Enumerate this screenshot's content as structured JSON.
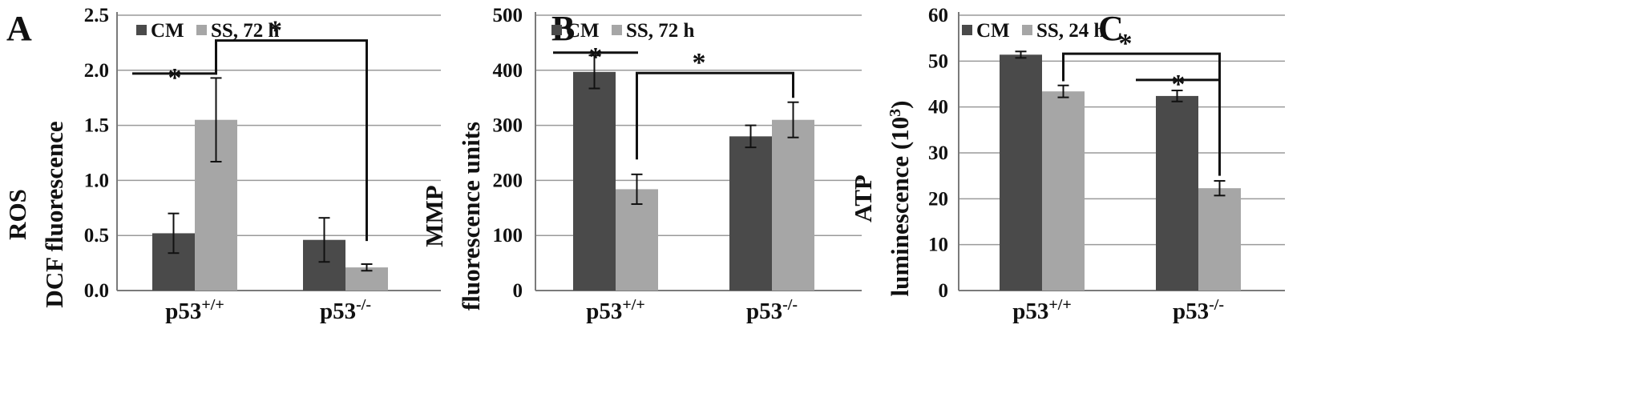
{
  "chart_data": [
    {
      "type": "bar",
      "panel_label": "A",
      "ylabel_lines": [
        "ROS",
        "DCF fluorescence"
      ],
      "ylim": [
        0,
        2.5
      ],
      "yticks": [
        "0.0",
        "0.5",
        "1.0",
        "1.5",
        "2.0",
        "2.5"
      ],
      "grid": "horizontal",
      "legend_position": "top-left",
      "categories": [
        {
          "base": "p53",
          "sup": "+/+"
        },
        {
          "base": "p53",
          "sup": "-/-"
        }
      ],
      "series": [
        {
          "name": "CM",
          "color": "#4a4a4a",
          "values": [
            0.52,
            0.46
          ],
          "errors": [
            0.18,
            0.2
          ]
        },
        {
          "name": "SS, 72 h",
          "color": "#a6a6a6",
          "values": [
            1.55,
            0.21
          ],
          "errors": [
            0.38,
            0.03
          ]
        }
      ],
      "significance": [
        {
          "type": "line",
          "label": "*",
          "cat": 0,
          "y": 1.97
        },
        {
          "type": "bracket",
          "label": "*",
          "from": {
            "cat": 0,
            "series": 1
          },
          "to": {
            "cat": 1,
            "series": 1
          },
          "y": 2.27,
          "start_y": 1.96,
          "end_y": 0.45
        }
      ]
    },
    {
      "type": "bar",
      "panel_label": "B",
      "ylabel_lines": [
        "MMP",
        "fluorescence units"
      ],
      "ylim": [
        0,
        500
      ],
      "yticks": [
        "0",
        "100",
        "200",
        "300",
        "400",
        "500"
      ],
      "grid": "horizontal",
      "legend_position": "top-left",
      "categories": [
        {
          "base": "p53",
          "sup": "+/+"
        },
        {
          "base": "p53",
          "sup": "-/-"
        }
      ],
      "series": [
        {
          "name": "CM",
          "color": "#4a4a4a",
          "values": [
            397,
            280
          ],
          "errors": [
            30,
            20
          ]
        },
        {
          "name": "SS, 72 h",
          "color": "#a6a6a6",
          "values": [
            184,
            310
          ],
          "errors": [
            27,
            32
          ]
        }
      ],
      "significance": [
        {
          "type": "line",
          "label": "*",
          "cat": 0,
          "y": 432
        },
        {
          "type": "bracket",
          "label": "*",
          "from": {
            "cat": 0,
            "series": 1
          },
          "to": {
            "cat": 1,
            "series": 1
          },
          "y": 395,
          "start_y": 238,
          "end_y": 350
        }
      ]
    },
    {
      "type": "bar",
      "panel_label": "C",
      "ylabel_lines": [
        "ATP",
        "luminescence (10",
        "3",
        ")"
      ],
      "ylim": [
        0,
        60
      ],
      "yticks": [
        "0",
        "10",
        "20",
        "30",
        "40",
        "50",
        "60"
      ],
      "grid": "horizontal",
      "legend_position": "top-left",
      "categories": [
        {
          "base": "p53",
          "sup": "+/+"
        },
        {
          "base": "p53",
          "sup": "-/-"
        }
      ],
      "series": [
        {
          "name": "CM",
          "color": "#4a4a4a",
          "values": [
            51.4,
            42.4
          ],
          "errors": [
            0.7,
            1.2
          ]
        },
        {
          "name": "SS, 24 h",
          "color": "#a6a6a6",
          "values": [
            43.4,
            22.3
          ],
          "errors": [
            1.3,
            1.6
          ]
        }
      ],
      "significance": [
        {
          "type": "line",
          "label": "*",
          "cat": 1,
          "y": 45.9
        },
        {
          "type": "bracket",
          "label": "*",
          "from": {
            "cat": 0,
            "series": 1
          },
          "to": {
            "cat": 1,
            "series": 1
          },
          "y": 51.6,
          "start_y": 45.6,
          "end_y": 25.0
        }
      ]
    }
  ]
}
